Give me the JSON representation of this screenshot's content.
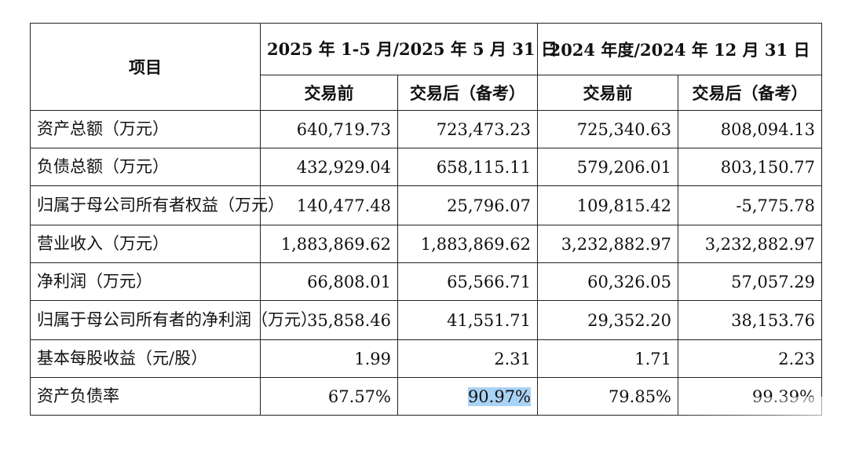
{
  "table": {
    "item_header": "项目",
    "period1_header": "2025 年 1-5 月/2025 年 5 月 31 日",
    "period2_header": "2024 年度/2024 年 12 月 31 日",
    "sub_before": "交易前",
    "sub_after": "交易后（备考）",
    "rows": [
      {
        "label": "资产总额（万元）",
        "values": [
          "640,719.73",
          "723,473.23",
          "725,340.63",
          "808,094.13"
        ]
      },
      {
        "label": "负债总额（万元）",
        "values": [
          "432,929.04",
          "658,115.11",
          "579,206.01",
          "803,150.77"
        ]
      },
      {
        "label": "归属于母公司所有者权益（万元）",
        "values": [
          "140,477.48",
          "25,796.07",
          "109,815.42",
          "-5,775.78"
        ]
      },
      {
        "label": "营业收入（万元）",
        "values": [
          "1,883,869.62",
          "1,883,869.62",
          "3,232,882.97",
          "3,232,882.97"
        ]
      },
      {
        "label": "净利润（万元）",
        "values": [
          "66,808.01",
          "65,566.71",
          "60,326.05",
          "57,057.29"
        ]
      },
      {
        "label": "归属于母公司所有者的净利润（万元）",
        "values": [
          "35,858.46",
          "41,551.71",
          "29,352.20",
          "38,153.76"
        ]
      },
      {
        "label": "基本每股收益（元/股）",
        "values": [
          "1.99",
          "2.31",
          "1.71",
          "2.23"
        ]
      },
      {
        "label": "资产负债率",
        "values": [
          "67.57%",
          "90.97%",
          "79.85%",
          "99.39%"
        ]
      }
    ],
    "highlight_color": "#a9d3f5"
  }
}
